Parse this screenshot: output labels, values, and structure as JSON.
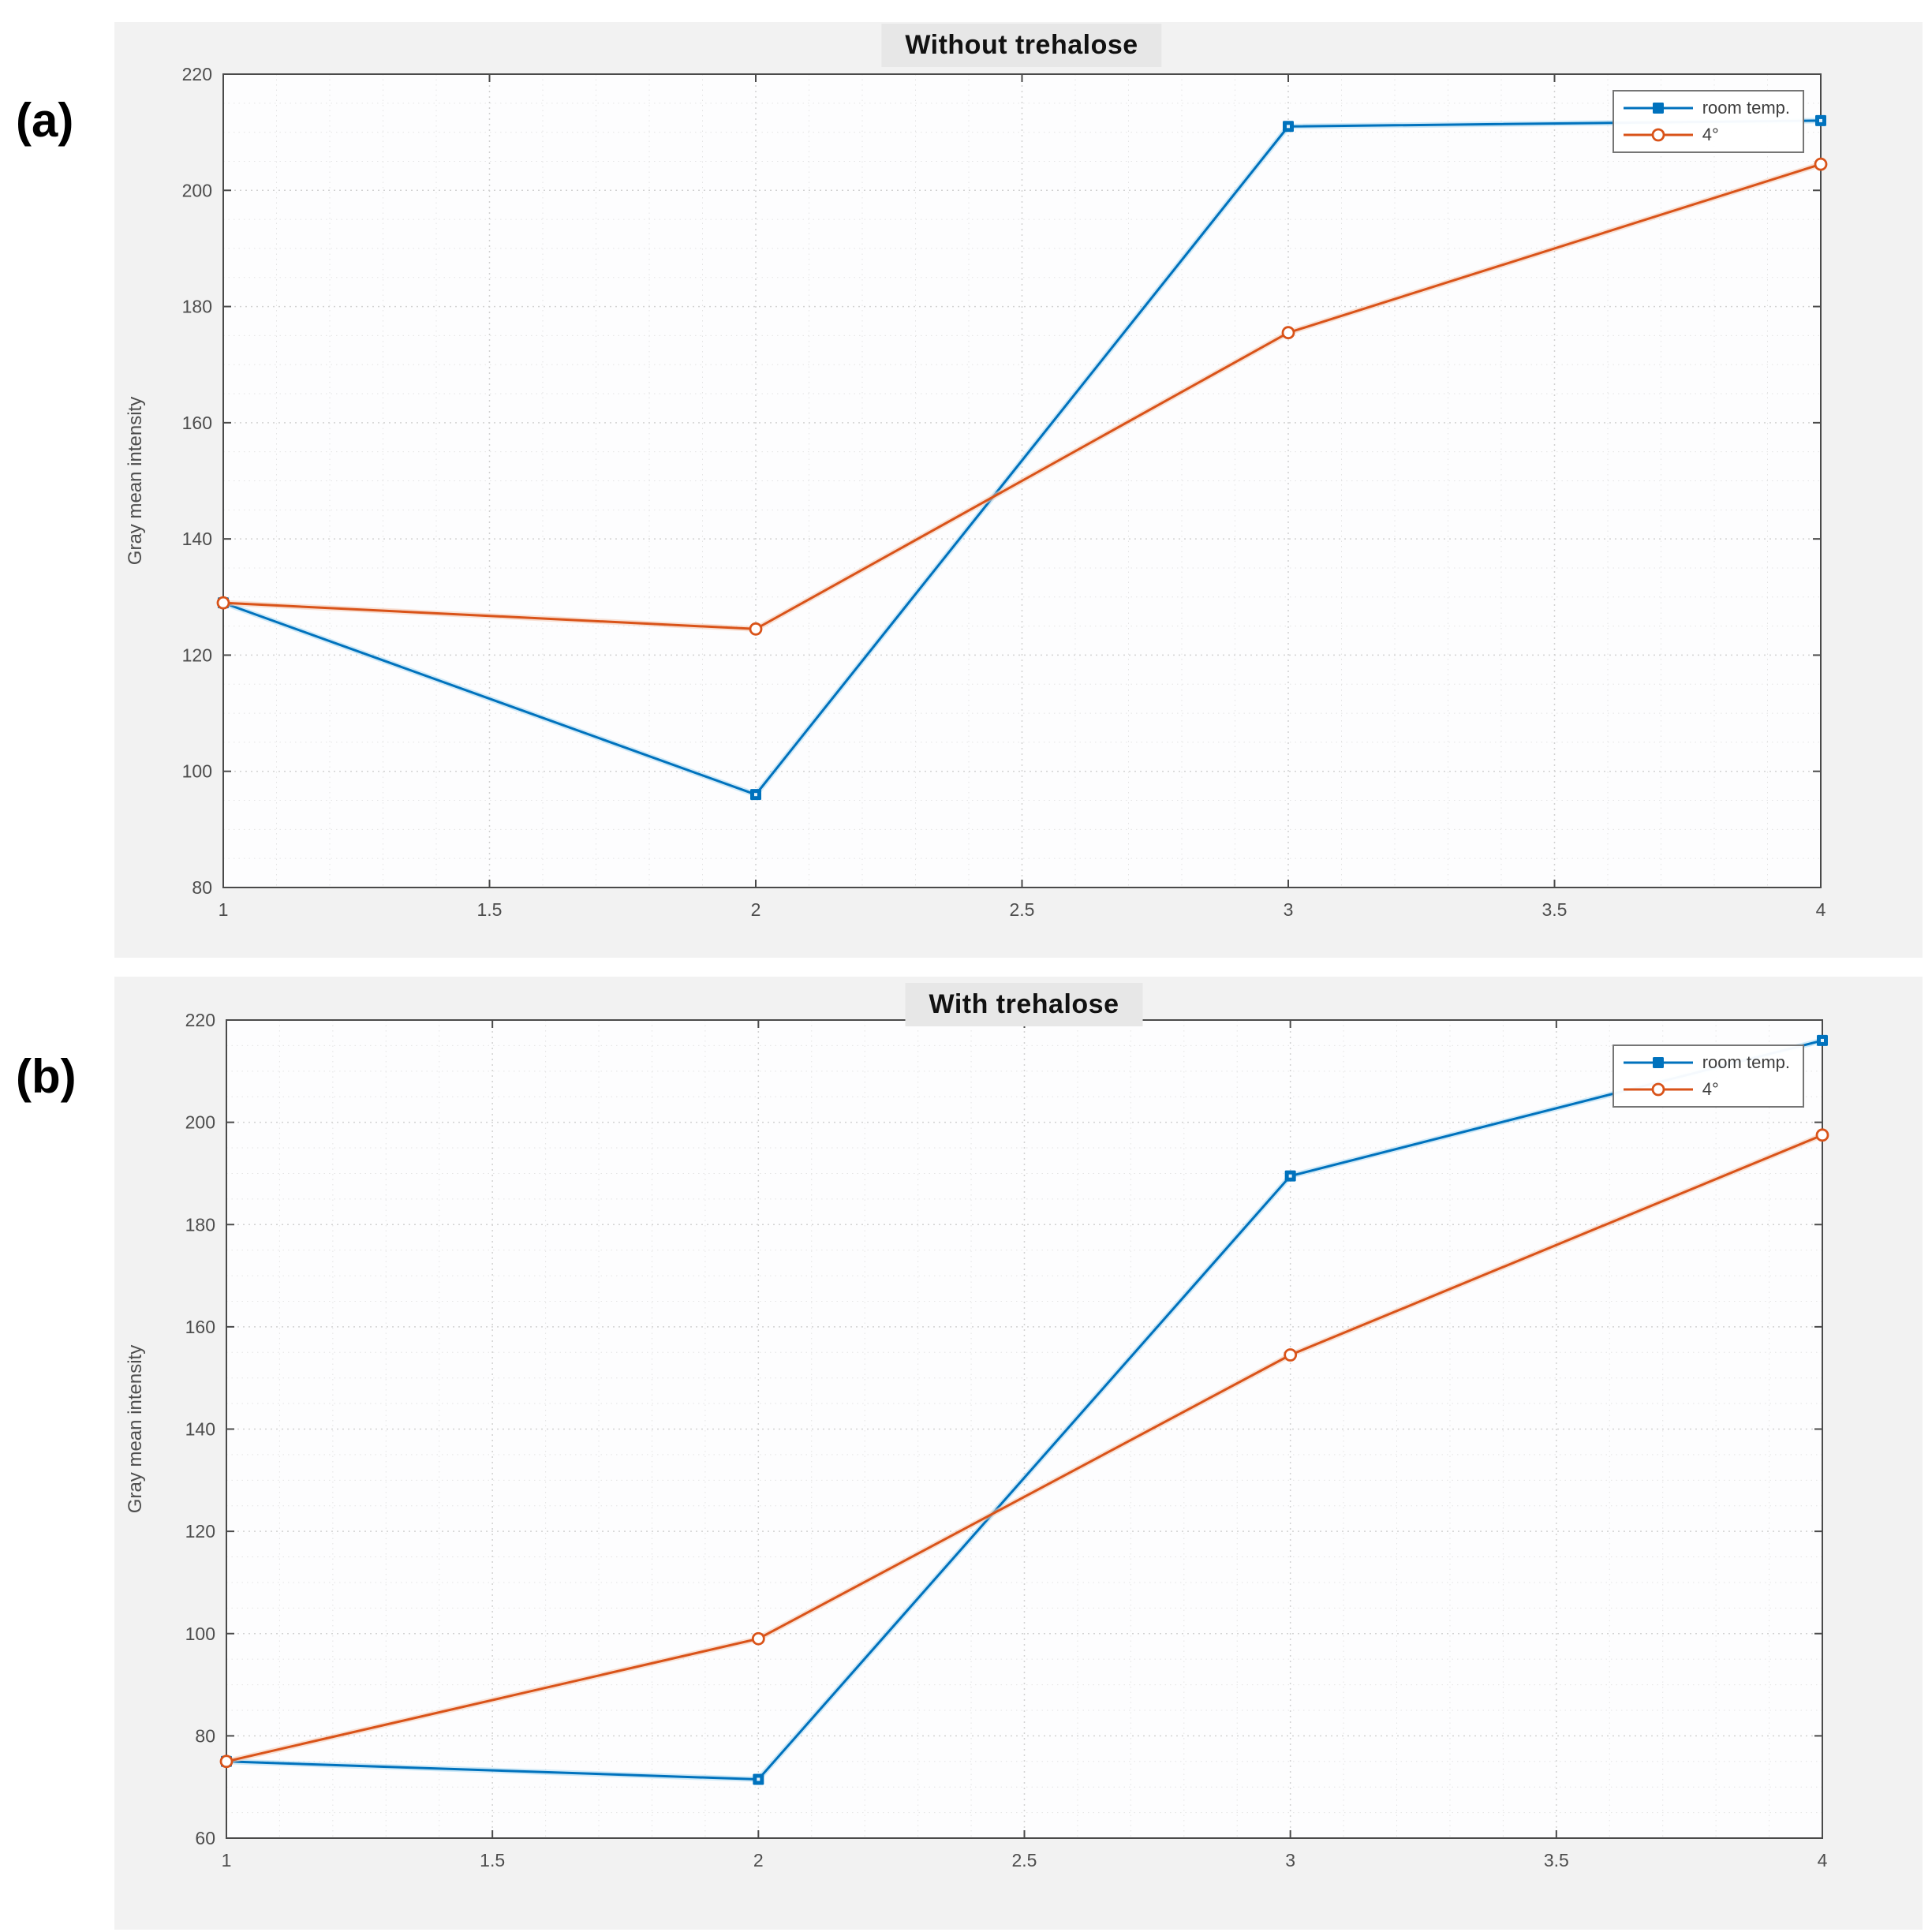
{
  "panels": [
    {
      "label": "(a)"
    },
    {
      "label": "(b)"
    }
  ],
  "chart_data": [
    {
      "type": "line",
      "title": "Without trehalose",
      "xlabel": "",
      "ylabel": "Gray mean intensity",
      "x": [
        1,
        2,
        3,
        4
      ],
      "xlim": [
        1,
        4
      ],
      "ylim": [
        80,
        220
      ],
      "xticks": [
        1,
        1.5,
        2,
        2.5,
        3,
        3.5,
        4
      ],
      "yticks": [
        80,
        100,
        120,
        140,
        160,
        180,
        200,
        220
      ],
      "grid": true,
      "minor_grid": true,
      "legend_position": "top-right",
      "series": [
        {
          "name": "room temp.",
          "color": "#0072BD",
          "marker": "square",
          "values": [
            129,
            96,
            211,
            212
          ]
        },
        {
          "name": "4°",
          "color": "#D95319",
          "marker": "circle",
          "values": [
            129,
            124.5,
            175.5,
            204.5
          ]
        }
      ]
    },
    {
      "type": "line",
      "title": "With trehalose",
      "xlabel": "",
      "ylabel": "Gray mean intensity",
      "x": [
        1,
        2,
        3,
        4
      ],
      "xlim": [
        1,
        4
      ],
      "ylim": [
        60,
        220
      ],
      "xticks": [
        1,
        1.5,
        2,
        2.5,
        3,
        3.5,
        4
      ],
      "yticks": [
        60,
        80,
        100,
        120,
        140,
        160,
        180,
        200,
        220
      ],
      "grid": true,
      "minor_grid": true,
      "legend_position": "top-right",
      "series": [
        {
          "name": "room temp.",
          "color": "#0072BD",
          "marker": "square",
          "values": [
            75,
            71.5,
            189.5,
            216
          ]
        },
        {
          "name": "4°",
          "color": "#D95319",
          "marker": "circle",
          "values": [
            75,
            99,
            154.5,
            197.5
          ]
        }
      ]
    }
  ]
}
